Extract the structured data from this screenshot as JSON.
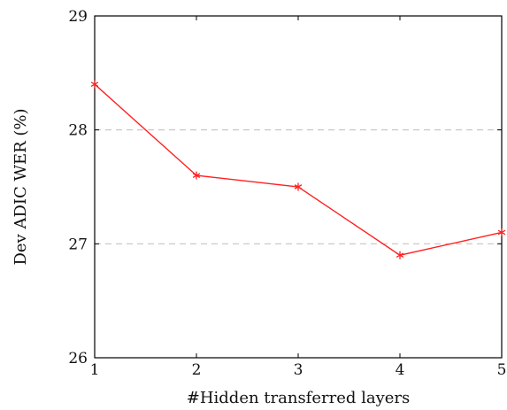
{
  "chart_data": {
    "type": "line",
    "xlabel": "#Hidden transferred layers",
    "ylabel": "Dev ADIC WER (%)",
    "xlim": [
      1,
      5
    ],
    "ylim": [
      26,
      29
    ],
    "xticks": [
      1,
      2,
      3,
      4,
      5
    ],
    "yticks": [
      26,
      27,
      28,
      29
    ],
    "grid": "horizontal-dashed",
    "legend": "none",
    "series": [
      {
        "x": [
          1,
          2,
          3,
          4,
          5
        ],
        "y": [
          28.4,
          27.6,
          27.5,
          26.9,
          27.1
        ],
        "color": "#ff2020",
        "marker": "star"
      }
    ]
  }
}
